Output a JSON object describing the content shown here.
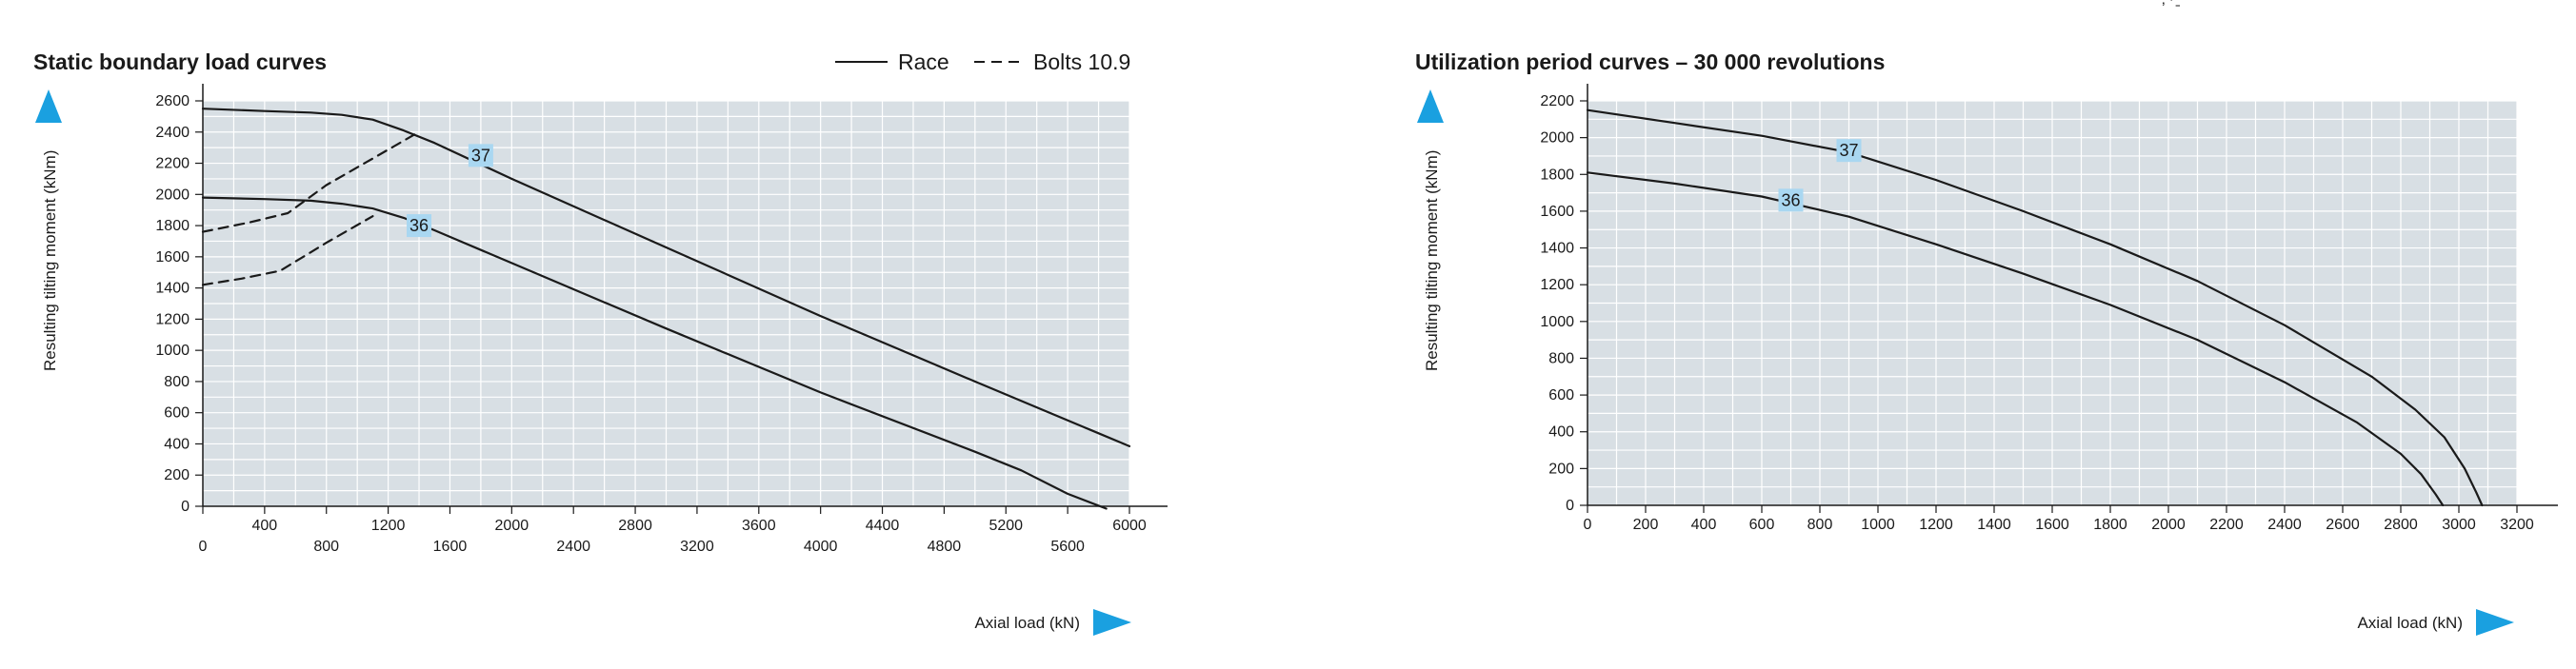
{
  "header_fragment": "‚ ∙ ̱̱",
  "accent_color": "#1aa0e0",
  "plot_bg": "#d8dfe4",
  "label_bg": "#a9d7f1",
  "chart_data": [
    {
      "type": "line",
      "title": "Static boundary load curves",
      "xlabel": "Axial load (kN)",
      "ylabel": "Resulting tilting moment (kNm)",
      "xlim": [
        0,
        6000
      ],
      "ylim": [
        0,
        2600
      ],
      "x_ticks": [
        0,
        400,
        800,
        1200,
        1600,
        2000,
        2400,
        2800,
        3200,
        3600,
        4000,
        4400,
        4800,
        5200,
        5600,
        6000
      ],
      "y_ticks": [
        0,
        200,
        400,
        600,
        800,
        1000,
        1200,
        1400,
        1600,
        1800,
        2000,
        2200,
        2400,
        2600
      ],
      "grid": true,
      "legend": {
        "position": "top-right",
        "entries": [
          {
            "label": "Race",
            "style": "solid"
          },
          {
            "label": "Bolts 10.9",
            "style": "dashed"
          }
        ]
      },
      "series": [
        {
          "name": "37",
          "style": "solid",
          "label_at": [
            1800,
            2250
          ],
          "x": [
            0,
            400,
            700,
            900,
            1100,
            1300,
            1500,
            2000,
            3000,
            4000,
            5000,
            6000
          ],
          "y": [
            2550,
            2535,
            2525,
            2510,
            2480,
            2410,
            2330,
            2100,
            1660,
            1220,
            800,
            385
          ]
        },
        {
          "name": "36",
          "style": "solid",
          "label_at": [
            1400,
            1800
          ],
          "x": [
            0,
            400,
            700,
            900,
            1100,
            1300,
            1500,
            2000,
            3000,
            4000,
            5000,
            5300,
            5600,
            5850
          ],
          "y": [
            1980,
            1970,
            1960,
            1940,
            1910,
            1850,
            1770,
            1560,
            1140,
            730,
            350,
            230,
            80,
            -15
          ]
        },
        {
          "name": "",
          "style": "dashed",
          "x": [
            0,
            300,
            550,
            800,
            1100,
            1380
          ],
          "y": [
            1760,
            1820,
            1880,
            2060,
            2230,
            2390
          ]
        },
        {
          "name": "",
          "style": "dashed",
          "x": [
            0,
            250,
            500,
            800,
            1100
          ],
          "y": [
            1420,
            1460,
            1510,
            1690,
            1860
          ]
        }
      ]
    },
    {
      "type": "line",
      "title": "Utilization period curves – 30 000 revolutions",
      "xlabel": "Axial load (kN)",
      "ylabel": "Resulting tilting moment (kNm)",
      "xlim": [
        0,
        3200
      ],
      "ylim": [
        0,
        2200
      ],
      "x_ticks": [
        0,
        200,
        400,
        600,
        800,
        1000,
        1200,
        1400,
        1600,
        1800,
        2000,
        2200,
        2400,
        2600,
        2800,
        3000,
        3200
      ],
      "y_ticks": [
        0,
        200,
        400,
        600,
        800,
        1000,
        1200,
        1400,
        1600,
        1800,
        2000,
        2200
      ],
      "grid": true,
      "series": [
        {
          "name": "37",
          "style": "solid",
          "label_at": [
            900,
            1930
          ],
          "x": [
            0,
            300,
            600,
            900,
            1200,
            1500,
            1800,
            2100,
            2400,
            2700,
            2850,
            2950,
            3020,
            3060,
            3080
          ],
          "y": [
            2150,
            2080,
            2010,
            1920,
            1770,
            1600,
            1420,
            1220,
            980,
            700,
            520,
            370,
            200,
            70,
            0
          ]
        },
        {
          "name": "36",
          "style": "solid",
          "label_at": [
            700,
            1660
          ],
          "x": [
            0,
            300,
            600,
            900,
            1200,
            1500,
            1800,
            2100,
            2400,
            2650,
            2800,
            2870,
            2920,
            2945
          ],
          "y": [
            1810,
            1750,
            1680,
            1570,
            1420,
            1260,
            1090,
            900,
            670,
            450,
            280,
            170,
            60,
            0
          ]
        }
      ]
    }
  ]
}
